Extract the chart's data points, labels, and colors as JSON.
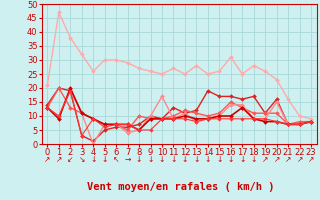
{
  "title": "",
  "xlabel": "Vent moyen/en rafales ( km/h )",
  "ylabel": "",
  "xlim": [
    -0.5,
    23.5
  ],
  "ylim": [
    0,
    50
  ],
  "yticks": [
    0,
    5,
    10,
    15,
    20,
    25,
    30,
    35,
    40,
    45,
    50
  ],
  "xticks": [
    0,
    1,
    2,
    3,
    4,
    5,
    6,
    7,
    8,
    9,
    10,
    11,
    12,
    13,
    14,
    15,
    16,
    17,
    18,
    19,
    20,
    21,
    22,
    23
  ],
  "bg_color": "#cff0f0",
  "grid_color": "#a8d8d8",
  "lines": [
    {
      "x": [
        0,
        1,
        2,
        3,
        4,
        5,
        6,
        7,
        8,
        9,
        10,
        11,
        12,
        13,
        14,
        15,
        16,
        17,
        18,
        19,
        20,
        21,
        22,
        23
      ],
      "y": [
        21,
        47,
        38,
        32,
        26,
        30,
        30,
        29,
        27,
        26,
        25,
        27,
        25,
        28,
        25,
        26,
        31,
        25,
        28,
        26,
        23,
        16,
        10,
        9
      ],
      "color": "#ffaaaa",
      "lw": 1.0,
      "marker": "D",
      "ms": 2.0
    },
    {
      "x": [
        0,
        1,
        2,
        3,
        4,
        5,
        6,
        7,
        8,
        9,
        10,
        11,
        12,
        13,
        14,
        15,
        16,
        17,
        18,
        19,
        20,
        21,
        22,
        23
      ],
      "y": [
        14,
        20,
        19,
        3,
        1,
        5,
        6,
        6,
        7,
        10,
        9,
        13,
        11,
        12,
        19,
        17,
        17,
        16,
        17,
        11,
        16,
        7,
        7,
        8
      ],
      "color": "#dd2222",
      "lw": 1.0,
      "marker": "D",
      "ms": 2.0
    },
    {
      "x": [
        0,
        1,
        2,
        3,
        4,
        5,
        6,
        7,
        8,
        9,
        10,
        11,
        12,
        13,
        14,
        15,
        16,
        17,
        18,
        19,
        20,
        21,
        22,
        23
      ],
      "y": [
        13,
        20,
        13,
        11,
        9,
        7,
        7,
        5,
        10,
        9,
        9,
        10,
        12,
        11,
        10,
        11,
        15,
        13,
        11,
        11,
        11,
        7,
        8,
        8
      ],
      "color": "#ff5555",
      "lw": 1.0,
      "marker": "D",
      "ms": 2.0
    },
    {
      "x": [
        0,
        1,
        2,
        3,
        4,
        5,
        6,
        7,
        8,
        9,
        10,
        11,
        12,
        13,
        14,
        15,
        16,
        17,
        18,
        19,
        20,
        21,
        22,
        23
      ],
      "y": [
        13,
        10,
        19,
        11,
        0,
        7,
        7,
        4,
        5,
        10,
        17,
        9,
        11,
        8,
        9,
        10,
        14,
        14,
        9,
        9,
        15,
        7,
        7,
        8
      ],
      "color": "#ff8888",
      "lw": 1.0,
      "marker": "D",
      "ms": 2.0
    },
    {
      "x": [
        0,
        1,
        2,
        3,
        4,
        5,
        6,
        7,
        8,
        9,
        10,
        11,
        12,
        13,
        14,
        15,
        16,
        17,
        18,
        19,
        20,
        21,
        22,
        23
      ],
      "y": [
        13,
        9,
        20,
        11,
        9,
        7,
        7,
        7,
        5,
        9,
        9,
        9,
        10,
        9,
        9,
        10,
        10,
        13,
        9,
        8,
        8,
        7,
        7,
        8
      ],
      "color": "#cc0000",
      "lw": 1.2,
      "marker": "D",
      "ms": 2.0
    },
    {
      "x": [
        0,
        1,
        2,
        3,
        4,
        5,
        6,
        7,
        8,
        9,
        10,
        11,
        12,
        13,
        14,
        15,
        16,
        17,
        18,
        19,
        20,
        21,
        22,
        23
      ],
      "y": [
        13,
        10,
        19,
        3,
        9,
        6,
        7,
        7,
        5,
        5,
        9,
        9,
        9,
        8,
        9,
        9,
        9,
        9,
        9,
        9,
        8,
        7,
        7,
        8
      ],
      "color": "#ff3333",
      "lw": 0.8,
      "marker": "D",
      "ms": 1.8
    }
  ],
  "arrow_symbols": [
    "↗",
    "↗",
    "↙",
    "↘",
    "↓",
    "↓",
    "↖",
    "→",
    "↓",
    "↓",
    "↓",
    "↓",
    "↓",
    "↓",
    "↓",
    "↓",
    "↓",
    "↓",
    "↓",
    "↗",
    "↗",
    "↗",
    "↗",
    "↗"
  ],
  "xlabel_color": "#cc0000",
  "xlabel_fontsize": 7.5,
  "tick_color": "#cc0000",
  "axis_color": "#cc0000",
  "tick_fontsize": 6.0
}
